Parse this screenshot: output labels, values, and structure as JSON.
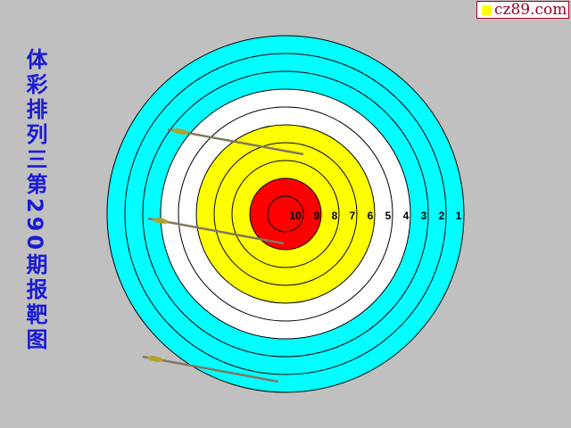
{
  "title": "体彩排列三第290期报靶图",
  "logo": {
    "text": "cz89.com",
    "square_color": "#ffff00",
    "text_color": "#9a0020"
  },
  "target": {
    "ring_labels": [
      "10",
      "9",
      "8",
      "7",
      "6",
      "5",
      "4",
      "3",
      "2",
      "1"
    ],
    "ring_colors": {
      "1": "#00ffff",
      "2": "#00ffff",
      "3": "#00ffff",
      "4": "#ffffff",
      "5": "#ffffff",
      "6": "#ffff00",
      "7": "#ffff00",
      "8": "#ffff00",
      "9": "#ff0000",
      "10": "#ff0000"
    }
  },
  "arrows": [
    {
      "name": "arrow-1"
    },
    {
      "name": "arrow-2"
    },
    {
      "name": "arrow-3"
    }
  ]
}
